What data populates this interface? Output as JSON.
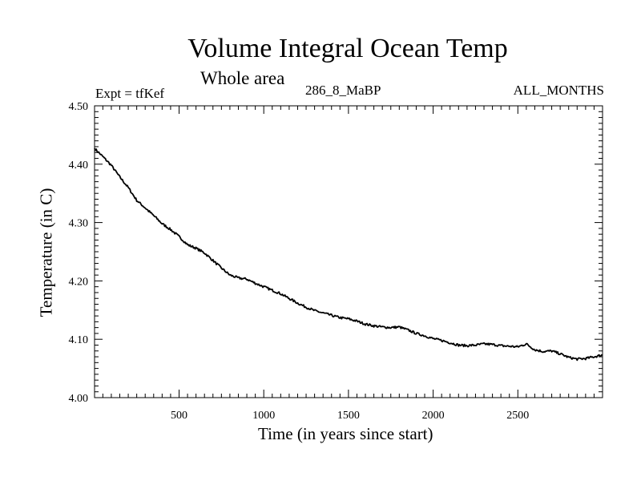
{
  "chart_data": {
    "type": "line",
    "title": "Volume Integral Ocean Temp",
    "subtitle": "Whole area",
    "annotations": {
      "experiment": "Expt = tfKef",
      "run": "286_8_MaBP",
      "period": "ALL_MONTHS"
    },
    "xlabel": "Time (in years since start)",
    "ylabel": "Temperature (in C)",
    "xlim": [
      1,
      3000
    ],
    "ylim": [
      4.0,
      4.5
    ],
    "xticks": [
      500,
      1000,
      1500,
      2000,
      2500
    ],
    "yticks": [
      4.0,
      4.1,
      4.2,
      4.3,
      4.4,
      4.5
    ],
    "ytick_labels": [
      "4.00",
      "4.10",
      "4.20",
      "4.30",
      "4.40",
      "4.50"
    ],
    "grid": false,
    "series": [
      {
        "color": "#000000",
        "x": [
          1,
          50,
          100,
          150,
          200,
          250,
          300,
          350,
          400,
          450,
          500,
          550,
          600,
          650,
          700,
          750,
          800,
          850,
          900,
          950,
          1000,
          1050,
          1100,
          1150,
          1200,
          1250,
          1300,
          1350,
          1400,
          1450,
          1500,
          1550,
          1600,
          1650,
          1700,
          1750,
          1800,
          1850,
          1900,
          1950,
          2000,
          2050,
          2100,
          2150,
          2200,
          2250,
          2300,
          2350,
          2400,
          2450,
          2500,
          2550,
          2600,
          2650,
          2700,
          2750,
          2800,
          2850,
          2900,
          2950,
          3000
        ],
        "y": [
          4.427,
          4.413,
          4.398,
          4.378,
          4.36,
          4.338,
          4.325,
          4.312,
          4.298,
          4.288,
          4.276,
          4.262,
          4.256,
          4.248,
          4.235,
          4.222,
          4.21,
          4.205,
          4.203,
          4.196,
          4.19,
          4.184,
          4.178,
          4.17,
          4.162,
          4.155,
          4.149,
          4.145,
          4.141,
          4.137,
          4.135,
          4.131,
          4.126,
          4.123,
          4.121,
          4.12,
          4.121,
          4.116,
          4.11,
          4.106,
          4.101,
          4.098,
          4.094,
          4.09,
          4.089,
          4.09,
          4.092,
          4.091,
          4.089,
          4.088,
          4.087,
          4.092,
          4.082,
          4.079,
          4.08,
          4.075,
          4.069,
          4.066,
          4.067,
          4.07,
          4.073
        ]
      }
    ]
  }
}
